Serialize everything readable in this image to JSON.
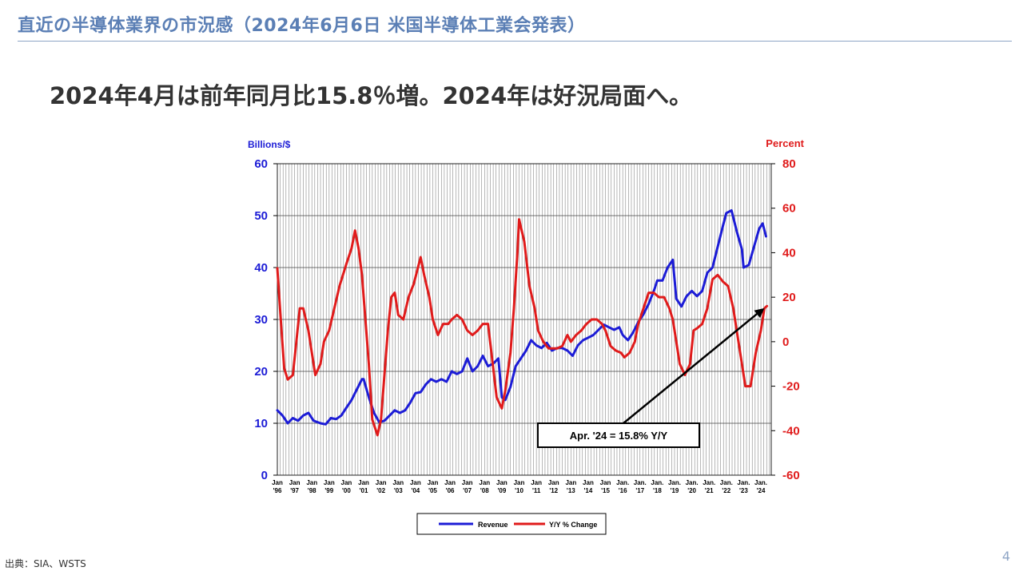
{
  "slide": {
    "title": "直近の半導体業界の市況感（2024年6月6日 米国半導体工業会発表）",
    "headline": "2024年4月は前年同月比15.8％増。2024年は好況局面へ。",
    "source": "出典：SIA、WSTS",
    "page_number": "4"
  },
  "colors": {
    "revenue": "#1c1cd6",
    "yoy": "#e01b1b",
    "title": "#5b7fb5",
    "grid": "#888888"
  },
  "chart_data": {
    "type": "line",
    "left_axis_label": "Billions/$",
    "right_axis_label": "Percent",
    "left_ylim": [
      0,
      60
    ],
    "right_ylim": [
      -60,
      80
    ],
    "left_ticks": [
      "0",
      "10",
      "20",
      "30",
      "40",
      "50",
      "60"
    ],
    "right_ticks": [
      "-60",
      "-40",
      "-20",
      "0",
      "20",
      "40",
      "60",
      "80"
    ],
    "x_range": [
      1996.0,
      2024.6
    ],
    "x_ticks": [
      {
        "year": 1996,
        "label1": "Jan",
        "label2": "'96"
      },
      {
        "year": 1997,
        "label1": "Jan",
        "label2": "'97"
      },
      {
        "year": 1998,
        "label1": "Jan",
        "label2": "'98"
      },
      {
        "year": 1999,
        "label1": "Jan",
        "label2": "'99"
      },
      {
        "year": 2000,
        "label1": "Jan",
        "label2": "'00"
      },
      {
        "year": 2001,
        "label1": "Jan",
        "label2": "'01"
      },
      {
        "year": 2002,
        "label1": "Jan",
        "label2": "'02"
      },
      {
        "year": 2003,
        "label1": "Jan",
        "label2": "'03"
      },
      {
        "year": 2004,
        "label1": "Jan",
        "label2": "'04"
      },
      {
        "year": 2005,
        "label1": "Jan",
        "label2": "'05"
      },
      {
        "year": 2006,
        "label1": "Jan",
        "label2": "'06"
      },
      {
        "year": 2007,
        "label1": "Jan",
        "label2": "'07"
      },
      {
        "year": 2008,
        "label1": "Jan",
        "label2": "'08"
      },
      {
        "year": 2009,
        "label1": "Jan",
        "label2": "'09"
      },
      {
        "year": 2010,
        "label1": "Jan",
        "label2": "'10"
      },
      {
        "year": 2011,
        "label1": "Jan",
        "label2": "'11"
      },
      {
        "year": 2012,
        "label1": "Jan",
        "label2": "'12"
      },
      {
        "year": 2013,
        "label1": "Jan",
        "label2": "'13"
      },
      {
        "year": 2014,
        "label1": "Jan",
        "label2": "'14"
      },
      {
        "year": 2015,
        "label1": "Jan",
        "label2": "'15"
      },
      {
        "year": 2016,
        "label1": "Jan.",
        "label2": "'16"
      },
      {
        "year": 2017,
        "label1": "Jan.",
        "label2": "'17"
      },
      {
        "year": 2018,
        "label1": "Jan.",
        "label2": "'18"
      },
      {
        "year": 2019,
        "label1": "Jan.",
        "label2": "'19"
      },
      {
        "year": 2020,
        "label1": "Jan.",
        "label2": "'20"
      },
      {
        "year": 2021,
        "label1": "Jan.",
        "label2": "'21"
      },
      {
        "year": 2022,
        "label1": "Jan.",
        "label2": "'22"
      },
      {
        "year": 2023,
        "label1": "Jan.",
        "label2": "'23"
      },
      {
        "year": 2024,
        "label1": "Jan.",
        "label2": "'24"
      }
    ],
    "series": [
      {
        "name": "Revenue",
        "axis": "left",
        "points": [
          [
            1996.0,
            12.5
          ],
          [
            1996.3,
            11.5
          ],
          [
            1996.6,
            10.0
          ],
          [
            1996.9,
            11.0
          ],
          [
            1997.2,
            10.5
          ],
          [
            1997.5,
            11.5
          ],
          [
            1997.8,
            12.0
          ],
          [
            1998.1,
            10.5
          ],
          [
            1998.5,
            10.0
          ],
          [
            1998.8,
            9.8
          ],
          [
            1999.1,
            11.0
          ],
          [
            1999.4,
            10.8
          ],
          [
            1999.7,
            11.5
          ],
          [
            2000.0,
            13.0
          ],
          [
            2000.3,
            14.5
          ],
          [
            2000.6,
            16.5
          ],
          [
            2000.9,
            18.5
          ],
          [
            2001.0,
            18.5
          ],
          [
            2001.3,
            15.0
          ],
          [
            2001.6,
            12.0
          ],
          [
            2001.9,
            10.2
          ],
          [
            2002.2,
            10.5
          ],
          [
            2002.5,
            11.5
          ],
          [
            2002.8,
            12.5
          ],
          [
            2003.1,
            12.0
          ],
          [
            2003.4,
            12.5
          ],
          [
            2003.7,
            14.0
          ],
          [
            2004.0,
            15.8
          ],
          [
            2004.3,
            16.0
          ],
          [
            2004.6,
            17.5
          ],
          [
            2004.9,
            18.5
          ],
          [
            2005.2,
            18.0
          ],
          [
            2005.5,
            18.5
          ],
          [
            2005.8,
            18.0
          ],
          [
            2006.1,
            20.0
          ],
          [
            2006.4,
            19.5
          ],
          [
            2006.7,
            20.0
          ],
          [
            2007.0,
            22.5
          ],
          [
            2007.3,
            20.0
          ],
          [
            2007.6,
            21.0
          ],
          [
            2007.9,
            23.0
          ],
          [
            2008.2,
            21.0
          ],
          [
            2008.5,
            21.5
          ],
          [
            2008.8,
            22.5
          ],
          [
            2009.0,
            15.0
          ],
          [
            2009.2,
            14.5
          ],
          [
            2009.5,
            17.0
          ],
          [
            2009.8,
            21.0
          ],
          [
            2010.1,
            22.5
          ],
          [
            2010.4,
            24.0
          ],
          [
            2010.7,
            26.0
          ],
          [
            2011.0,
            25.0
          ],
          [
            2011.3,
            24.5
          ],
          [
            2011.6,
            25.5
          ],
          [
            2011.9,
            24.0
          ],
          [
            2012.2,
            24.5
          ],
          [
            2012.5,
            24.5
          ],
          [
            2012.8,
            24.0
          ],
          [
            2013.1,
            23.0
          ],
          [
            2013.4,
            25.0
          ],
          [
            2013.7,
            26.0
          ],
          [
            2014.0,
            26.5
          ],
          [
            2014.3,
            27.0
          ],
          [
            2014.6,
            28.0
          ],
          [
            2014.9,
            29.0
          ],
          [
            2015.2,
            28.5
          ],
          [
            2015.5,
            28.0
          ],
          [
            2015.8,
            28.5
          ],
          [
            2016.0,
            27.0
          ],
          [
            2016.3,
            26.0
          ],
          [
            2016.6,
            27.5
          ],
          [
            2016.9,
            29.5
          ],
          [
            2017.2,
            31.0
          ],
          [
            2017.5,
            33.0
          ],
          [
            2017.8,
            35.5
          ],
          [
            2018.0,
            37.5
          ],
          [
            2018.3,
            37.5
          ],
          [
            2018.6,
            40.0
          ],
          [
            2018.9,
            41.5
          ],
          [
            2019.1,
            34.0
          ],
          [
            2019.4,
            32.5
          ],
          [
            2019.7,
            34.5
          ],
          [
            2020.0,
            35.5
          ],
          [
            2020.3,
            34.5
          ],
          [
            2020.6,
            35.5
          ],
          [
            2020.9,
            39.0
          ],
          [
            2021.2,
            40.0
          ],
          [
            2021.5,
            44.0
          ],
          [
            2021.8,
            48.0
          ],
          [
            2022.0,
            50.5
          ],
          [
            2022.3,
            51.0
          ],
          [
            2022.6,
            47.0
          ],
          [
            2022.9,
            43.5
          ],
          [
            2023.0,
            40.0
          ],
          [
            2023.3,
            40.5
          ],
          [
            2023.6,
            44.0
          ],
          [
            2023.9,
            47.5
          ],
          [
            2024.1,
            48.5
          ],
          [
            2024.3,
            46.0
          ]
        ]
      },
      {
        "name": "Y/Y % Change",
        "axis": "right",
        "points": [
          [
            1996.0,
            33
          ],
          [
            1996.2,
            10
          ],
          [
            1996.4,
            -12
          ],
          [
            1996.6,
            -17
          ],
          [
            1996.9,
            -15
          ],
          [
            1997.1,
            0
          ],
          [
            1997.3,
            15
          ],
          [
            1997.5,
            15
          ],
          [
            1997.8,
            5
          ],
          [
            1998.0,
            -5
          ],
          [
            1998.2,
            -15
          ],
          [
            1998.5,
            -10
          ],
          [
            1998.7,
            0
          ],
          [
            1999.0,
            5
          ],
          [
            1999.3,
            15
          ],
          [
            1999.6,
            25
          ],
          [
            2000.0,
            35
          ],
          [
            2000.3,
            42
          ],
          [
            2000.5,
            50
          ],
          [
            2000.7,
            42
          ],
          [
            2000.9,
            30
          ],
          [
            2001.1,
            10
          ],
          [
            2001.3,
            -10
          ],
          [
            2001.5,
            -35
          ],
          [
            2001.8,
            -42
          ],
          [
            2002.0,
            -35
          ],
          [
            2002.2,
            -15
          ],
          [
            2002.4,
            5
          ],
          [
            2002.6,
            20
          ],
          [
            2002.8,
            22
          ],
          [
            2003.0,
            12
          ],
          [
            2003.3,
            10
          ],
          [
            2003.6,
            20
          ],
          [
            2003.9,
            26
          ],
          [
            2004.1,
            32
          ],
          [
            2004.3,
            38
          ],
          [
            2004.5,
            30
          ],
          [
            2004.8,
            20
          ],
          [
            2005.0,
            10
          ],
          [
            2005.3,
            3
          ],
          [
            2005.6,
            8
          ],
          [
            2005.9,
            8
          ],
          [
            2006.1,
            10
          ],
          [
            2006.4,
            12
          ],
          [
            2006.7,
            10
          ],
          [
            2007.0,
            5
          ],
          [
            2007.3,
            3
          ],
          [
            2007.6,
            5
          ],
          [
            2007.9,
            8
          ],
          [
            2008.2,
            8
          ],
          [
            2008.4,
            -5
          ],
          [
            2008.7,
            -25
          ],
          [
            2009.0,
            -30
          ],
          [
            2009.2,
            -22
          ],
          [
            2009.5,
            -5
          ],
          [
            2009.7,
            15
          ],
          [
            2009.9,
            40
          ],
          [
            2010.0,
            55
          ],
          [
            2010.3,
            45
          ],
          [
            2010.6,
            25
          ],
          [
            2010.9,
            15
          ],
          [
            2011.1,
            5
          ],
          [
            2011.4,
            0
          ],
          [
            2011.7,
            -3
          ],
          [
            2011.9,
            -3
          ],
          [
            2012.2,
            -3
          ],
          [
            2012.5,
            -2
          ],
          [
            2012.8,
            3
          ],
          [
            2013.0,
            0
          ],
          [
            2013.3,
            3
          ],
          [
            2013.6,
            5
          ],
          [
            2013.9,
            8
          ],
          [
            2014.2,
            10
          ],
          [
            2014.5,
            10
          ],
          [
            2014.8,
            8
          ],
          [
            2015.0,
            5
          ],
          [
            2015.3,
            -2
          ],
          [
            2015.6,
            -4
          ],
          [
            2015.9,
            -5
          ],
          [
            2016.1,
            -7
          ],
          [
            2016.4,
            -5
          ],
          [
            2016.7,
            0
          ],
          [
            2016.9,
            8
          ],
          [
            2017.2,
            15
          ],
          [
            2017.5,
            22
          ],
          [
            2017.8,
            22
          ],
          [
            2018.1,
            20
          ],
          [
            2018.4,
            20
          ],
          [
            2018.7,
            15
          ],
          [
            2018.9,
            10
          ],
          [
            2019.1,
            0
          ],
          [
            2019.3,
            -10
          ],
          [
            2019.6,
            -15
          ],
          [
            2019.9,
            -10
          ],
          [
            2020.1,
            5
          ],
          [
            2020.3,
            6
          ],
          [
            2020.6,
            8
          ],
          [
            2020.9,
            15
          ],
          [
            2021.2,
            28
          ],
          [
            2021.5,
            30
          ],
          [
            2021.8,
            27
          ],
          [
            2022.1,
            25
          ],
          [
            2022.4,
            15
          ],
          [
            2022.6,
            5
          ],
          [
            2022.9,
            -10
          ],
          [
            2023.1,
            -20
          ],
          [
            2023.4,
            -20
          ],
          [
            2023.7,
            -5
          ],
          [
            2024.0,
            5
          ],
          [
            2024.2,
            15
          ],
          [
            2024.35,
            16
          ]
        ]
      }
    ],
    "annotation": {
      "text": "Apr. '24 = 15.8% Y/Y",
      "target_year": 2024.3,
      "target_pct": 15.8
    },
    "legend": {
      "position": "bottom-center",
      "items": [
        "Revenue",
        "Y/Y % Change"
      ]
    }
  }
}
